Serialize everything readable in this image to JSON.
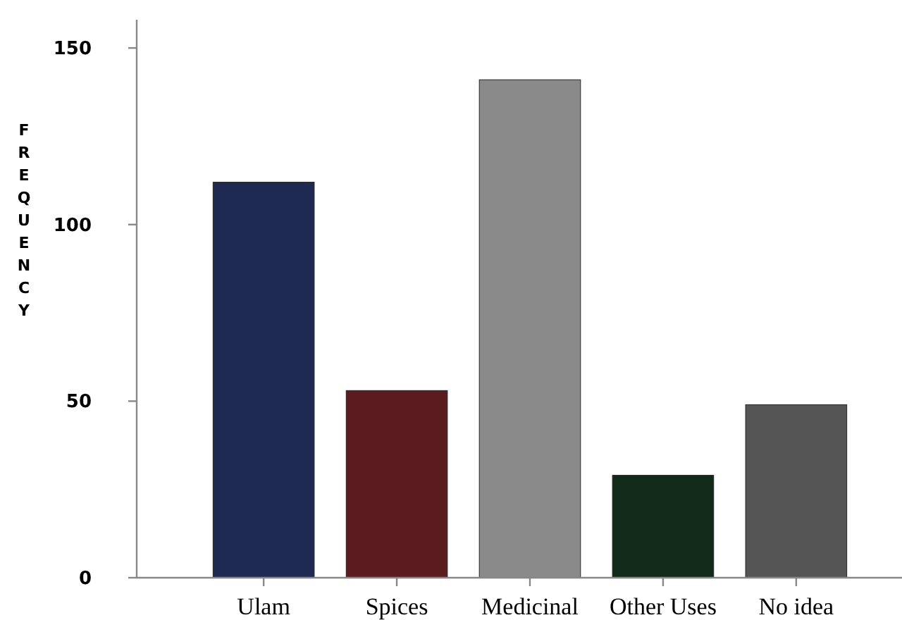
{
  "chart_data": {
    "type": "bar",
    "ylabel": "FREQUENCY",
    "categories": [
      "Ulam",
      "Spices",
      "Medicinal",
      "Other Uses",
      "No idea"
    ],
    "values": [
      112,
      53,
      141,
      29,
      49
    ],
    "colors": [
      "#1f2a52",
      "#5a1c1e",
      "#8a8a8a",
      "#112a1a",
      "#555555"
    ],
    "ylim": [
      0,
      158
    ],
    "yticks": [
      0,
      50,
      100,
      150
    ],
    "grid": false
  }
}
